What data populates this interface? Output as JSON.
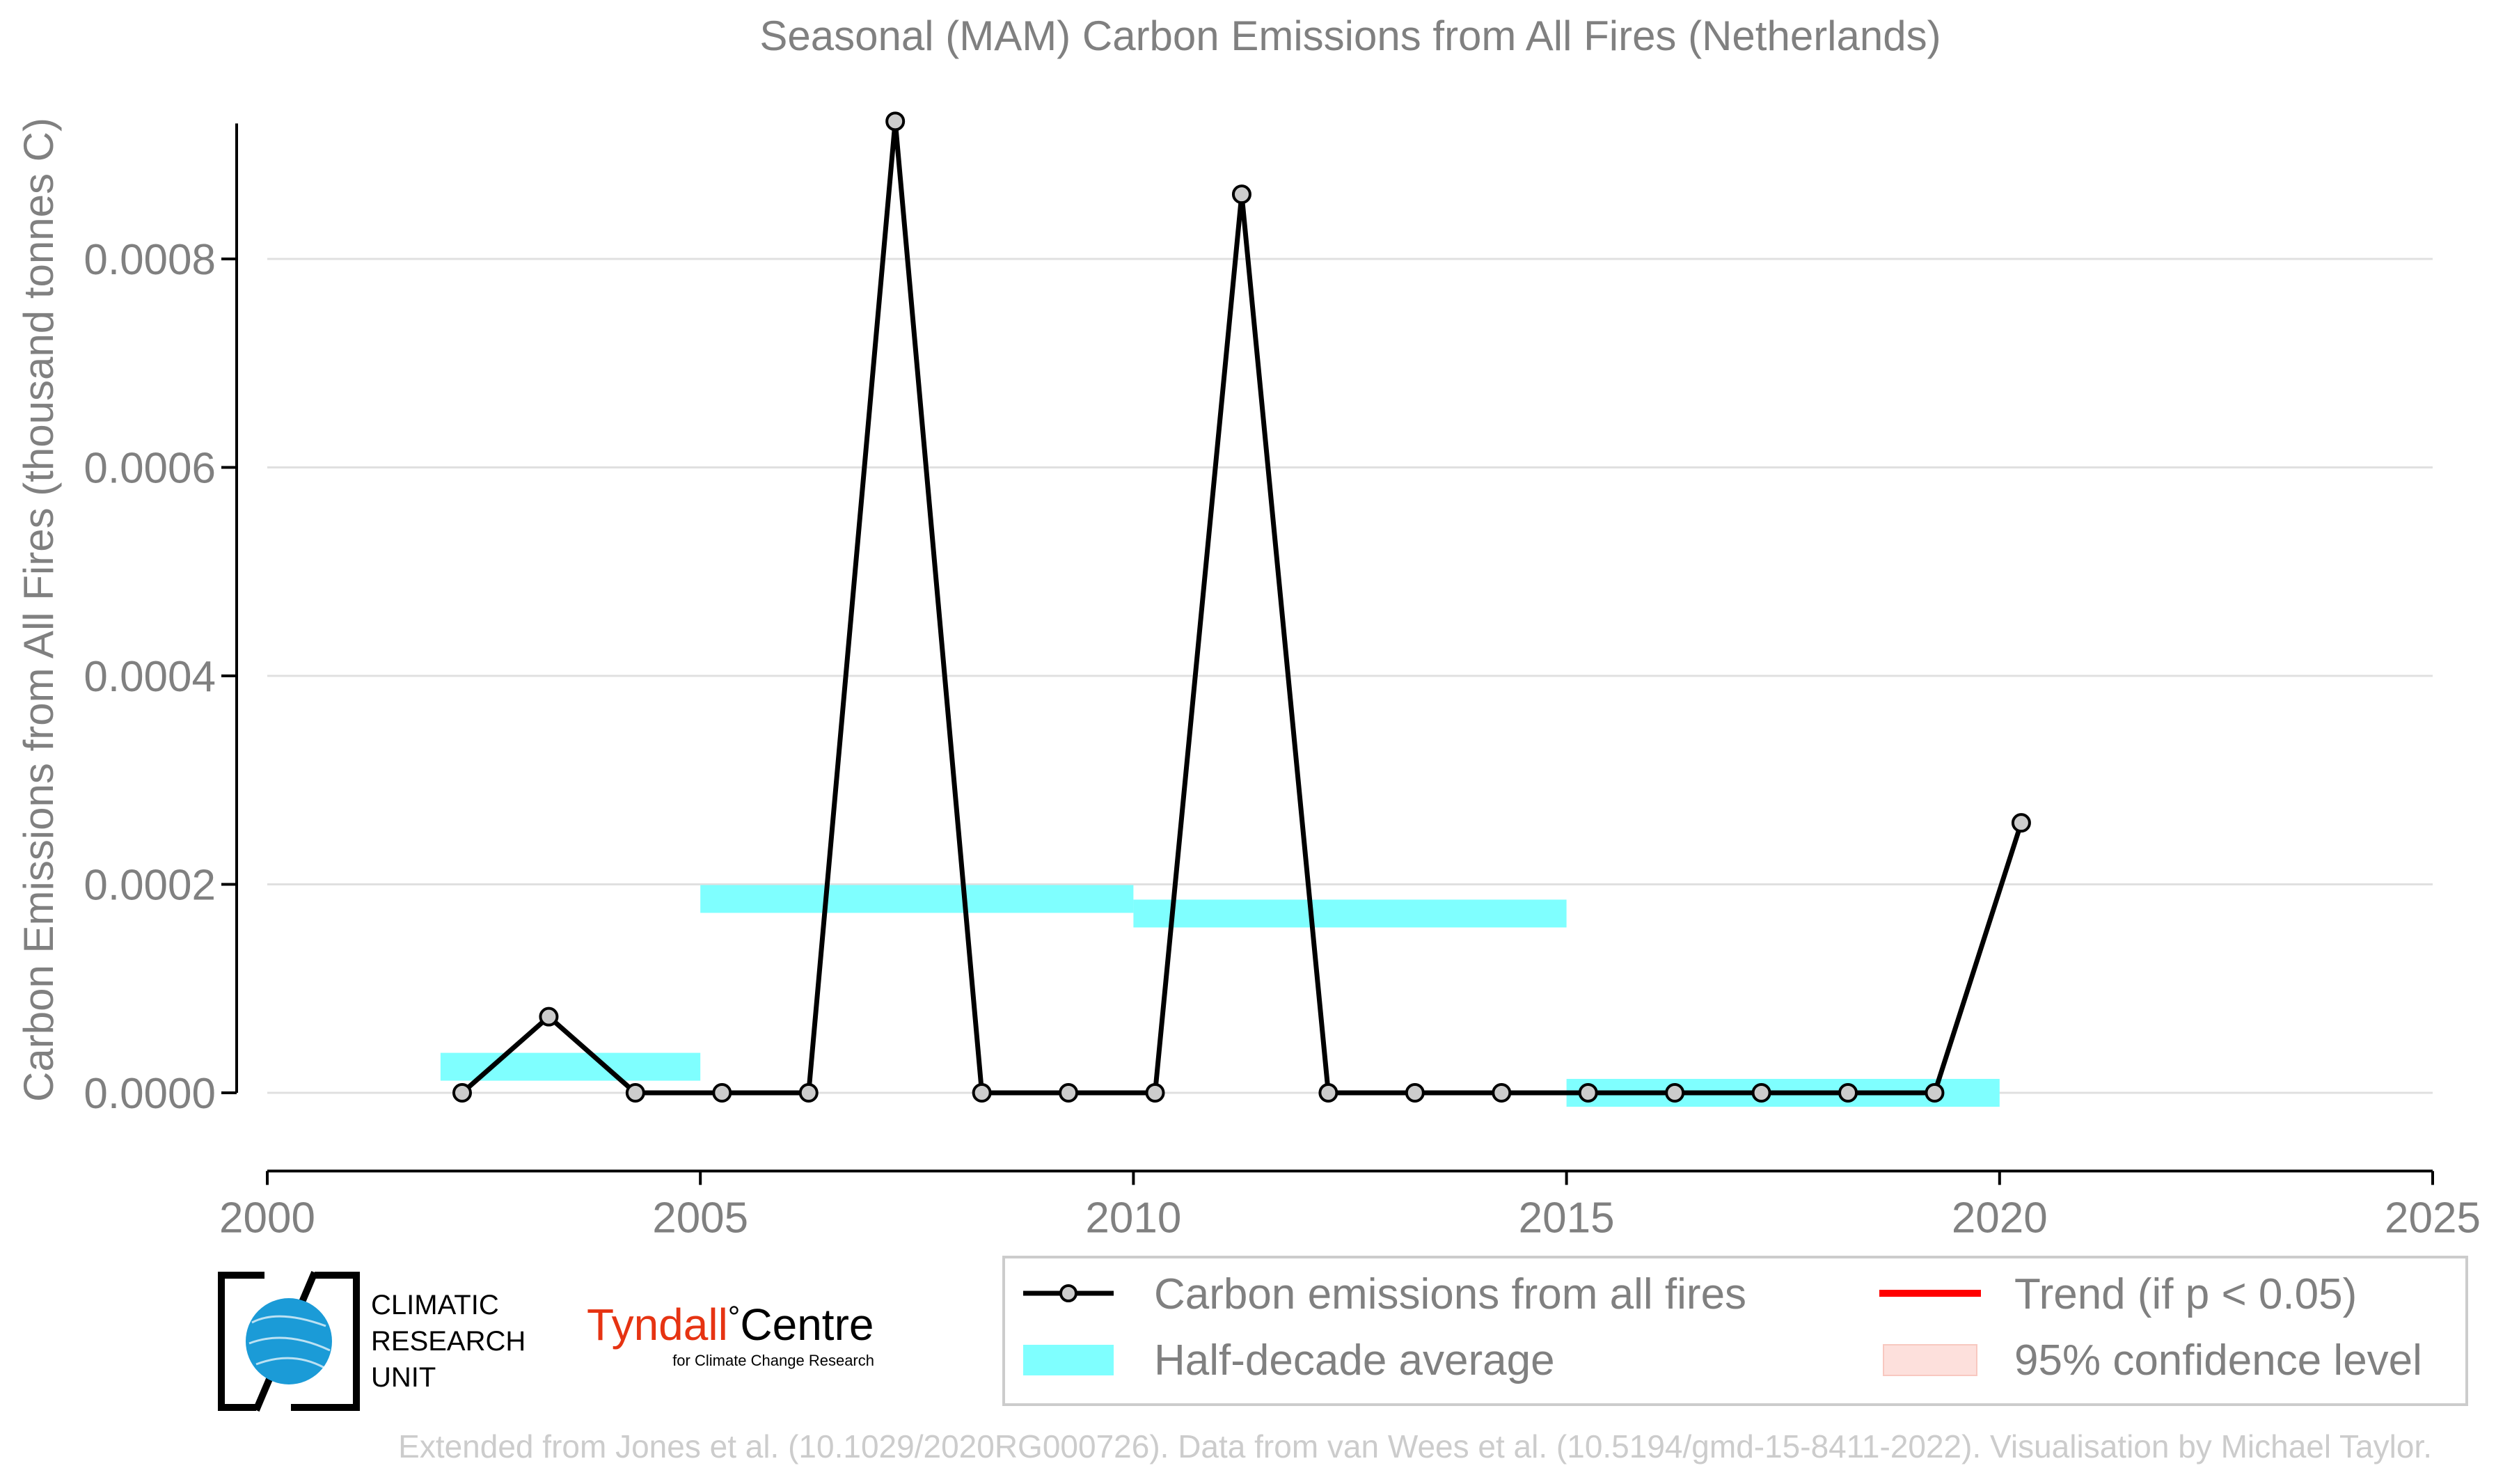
{
  "chart_data": {
    "type": "line",
    "title": "Seasonal (MAM) Carbon Emissions from All Fires (Netherlands)",
    "xlabel": "",
    "ylabel": "Carbon Emissions from All Fires (thousand tonnes C)",
    "xlim": [
      2000,
      2025
    ],
    "ylim": [
      -7.5e-05,
      0.00093
    ],
    "x_ticks": [
      2000,
      2005,
      2010,
      2015,
      2020,
      2025
    ],
    "y_ticks": [
      0.0,
      0.0002,
      0.0004,
      0.0006,
      0.0008
    ],
    "y_tick_labels": [
      "0.0000",
      "0.0002",
      "0.0004",
      "0.0006",
      "0.0008"
    ],
    "grid": "horizontal",
    "series": [
      {
        "name": "Carbon emissions from all fires",
        "color": "#000000",
        "marker_fill": "#cccccc",
        "x": [
          2002.25,
          2003.25,
          2004.25,
          2005.25,
          2006.25,
          2007.25,
          2008.25,
          2009.25,
          2010.25,
          2011.25,
          2012.25,
          2013.25,
          2014.25,
          2015.25,
          2016.25,
          2017.25,
          2018.25,
          2019.25,
          2020.25
        ],
        "values": [
          0.0,
          7.3e-05,
          0.0,
          0.0,
          0.0,
          0.000932,
          0.0,
          0.0,
          0.0,
          0.000862,
          0.0,
          0.0,
          0.0,
          0.0,
          0.0,
          0.0,
          0.0,
          0.0,
          0.000259
        ]
      }
    ],
    "half_decade_average": {
      "name": "Half-decade average",
      "color": "#7fffff",
      "segments": [
        {
          "x0": 2002,
          "x1": 2005,
          "value": 2.5e-05
        },
        {
          "x0": 2005,
          "x1": 2010,
          "value": 0.000186
        },
        {
          "x0": 2010,
          "x1": 2015,
          "value": 0.000172
        },
        {
          "x0": 2015,
          "x1": 2020,
          "value": 0.0
        }
      ]
    },
    "legend": {
      "placement": "bottom-right",
      "items": [
        {
          "label": "Carbon emissions from all fires",
          "kind": "line-marker",
          "color": "#000000"
        },
        {
          "label": "Trend (if p < 0.05)",
          "kind": "line",
          "color": "#ff0000"
        },
        {
          "label": "Half-decade average",
          "kind": "band",
          "color": "#7fffff"
        },
        {
          "label": "95% confidence level",
          "kind": "band",
          "color": "#fde0dc"
        }
      ]
    }
  },
  "logos": {
    "cru": {
      "line1": "CLIMATIC",
      "line2": "RESEARCH",
      "line3": "UNIT",
      "globe_color": "#1b9bd7"
    },
    "tyndall": {
      "name_part1": "Tyndall",
      "degree": "°",
      "name_part2": "Centre",
      "subtitle": "for Climate Change Research",
      "accent": "#e63312"
    }
  },
  "footer": {
    "credit": "Extended from Jones et al. (10.1029/2020RG000726). Data from van Wees et al. (10.5194/gmd-15-8411-2022). Visualisation by Michael Taylor."
  },
  "colors": {
    "text": "#808080",
    "axis": "#000000",
    "grid": "#e0e0e0",
    "credit": "#cccccc"
  }
}
